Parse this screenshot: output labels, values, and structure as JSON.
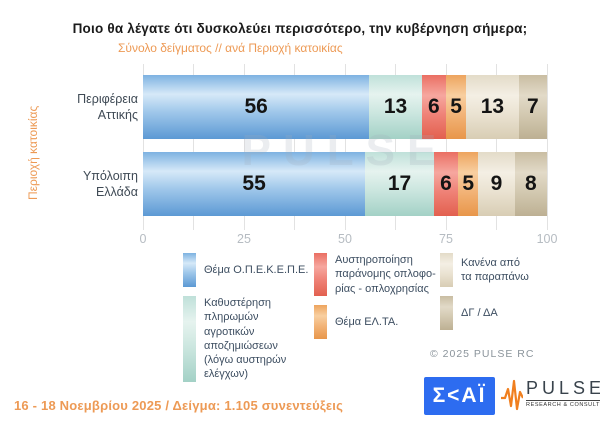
{
  "header": {
    "title": "Ποιο θα λέγατε ότι δυσκολεύει περισσότερο, την κυβέρνηση σήμερα;",
    "subtitle": "Σύνολο δείγματος // ανά Περιοχή κατοικίας"
  },
  "chart_data": {
    "type": "bar",
    "orientation": "horizontal-stacked",
    "title": "Ποιο θα λέγατε ότι δυσκολεύει περισσότερο, την κυβέρνηση σήμερα;",
    "y_axis_title": "Περιοχή κατοικίας",
    "categories": [
      "Περιφέρεια\nΑττικής",
      "Υπόλοιπη\nΕλλάδα"
    ],
    "series": [
      {
        "name": "Θέμα Ο.Π.Ε.Κ.Ε.Π.Ε.",
        "color": "#6fa8dc",
        "values": [
          56,
          55
        ]
      },
      {
        "name": "Καθυστέρηση πληρωμών αγροτικών αποζημιώσεων (λόγω αυστηρών ελέγχων)",
        "color": "#b7d9d1",
        "values": [
          13,
          17
        ]
      },
      {
        "name": "Αυστηροποίηση παράνομης οπλοφορίας - οπλοχρησίας",
        "color": "#ee7d72",
        "values": [
          6,
          6
        ]
      },
      {
        "name": "Θέμα ΕΛ.ΤΑ.",
        "color": "#f2ac6a",
        "values": [
          5,
          5
        ]
      },
      {
        "name": "Κανένα από τα παραπάνω",
        "color": "#e9e2d2",
        "values": [
          13,
          9
        ]
      },
      {
        "name": "ΔΓ / ΔΑ",
        "color": "#ccc2a9",
        "values": [
          7,
          8
        ]
      }
    ],
    "x_ticks": [
      0,
      25,
      50,
      75,
      100
    ],
    "xlim": [
      0,
      100
    ],
    "minor_grid_step": 12.5,
    "grid": true,
    "legend_position": "bottom",
    "watermark": "PULSE"
  },
  "legend": {
    "columns": [
      {
        "items": [
          {
            "series": 0,
            "label": "Θέμα Ο.Π.Ε.Κ.Ε.Π.Ε."
          },
          {
            "series": 1,
            "label": "Καθυστέρηση πληρωμών\nαγροτικών αποζημιώσεων\n(λόγω αυστηρών ελέγχων)"
          }
        ]
      },
      {
        "items": [
          {
            "series": 2,
            "label": "Αυστηροποίηση\nπαράνομης οπλοφο-\nρίας - οπλοχρησίας"
          },
          {
            "series": 3,
            "label": "Θέμα ΕΛ.ΤΑ."
          }
        ]
      },
      {
        "items": [
          {
            "series": 4,
            "label": "Κανένα από\nτα παραπάνω"
          },
          {
            "series": 5,
            "label": "ΔΓ / ΔΑ"
          }
        ]
      }
    ]
  },
  "copyright": "© 2025 PULSE RC",
  "footer": {
    "note": "16 - 18 Νοεμβρίου 2025  /  Δείγμα:  1.105 συνεντεύξεις",
    "skai_logo_text": "Σ<ΑΪ",
    "pulse_logo_text": "PULSE",
    "pulse_logo_sub": "RESEARCH & CONSULTING"
  },
  "colors": {
    "accent_orange": "#ED9A55",
    "title_text": "#1a1a1a",
    "legend_text": "#3d4e61",
    "tick_text": "#b6bcc2",
    "skai_blue": "#2d6cf0",
    "pulse_orange": "#F07F1F"
  }
}
